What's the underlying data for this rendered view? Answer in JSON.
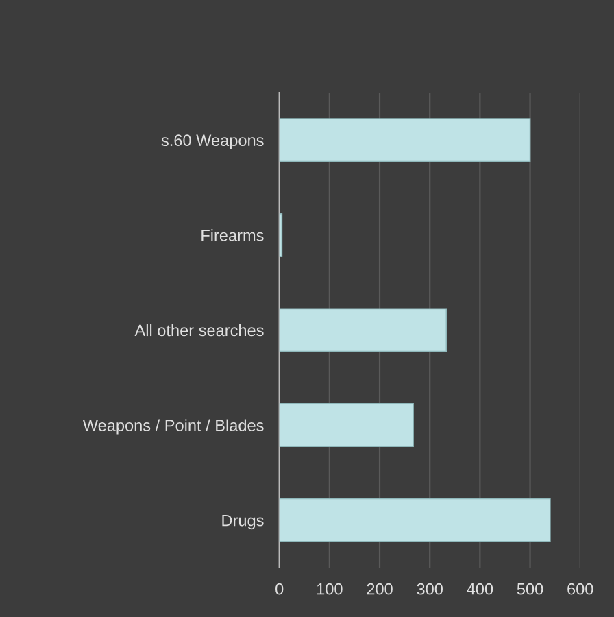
{
  "chart_data": {
    "type": "bar",
    "orientation": "horizontal",
    "categories": [
      "s.60 Weapons",
      "Firearms",
      "All other searches",
      "Weapons / Point / Blades",
      "Drugs"
    ],
    "values": [
      500,
      5,
      333,
      267,
      540
    ],
    "color": "#bfe3e6",
    "xlim": [
      0,
      600
    ],
    "xticks": [
      0,
      100,
      200,
      300,
      400,
      500,
      600
    ],
    "grid": "x",
    "legend": false
  }
}
